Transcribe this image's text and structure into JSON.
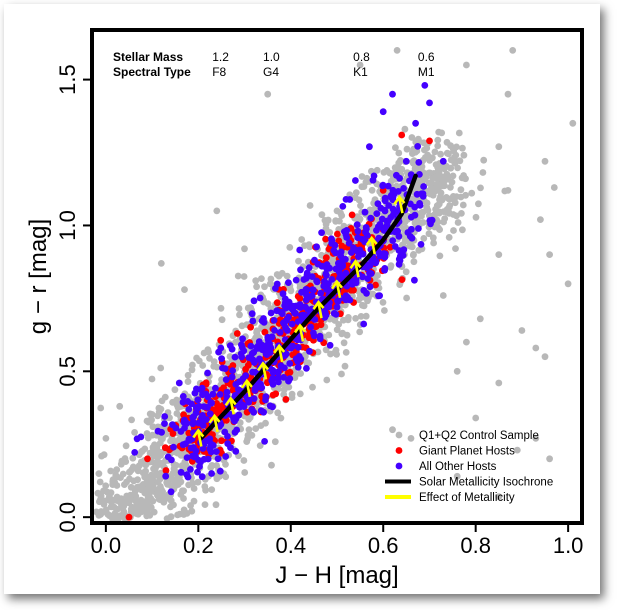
{
  "chart_data": {
    "type": "scatter",
    "xlabel": "J − H  [mag]",
    "ylabel": "g − r  [mag]",
    "xlim": [
      -0.03,
      1.03
    ],
    "ylim": [
      -0.02,
      1.67
    ],
    "x_ticks": [
      "0.0",
      "0.2",
      "0.4",
      "0.6",
      "0.8",
      "1.0"
    ],
    "x_tick_values": [
      0.0,
      0.2,
      0.4,
      0.6,
      0.8,
      1.0
    ],
    "y_ticks": [
      "0.0",
      "0.5",
      "1.0",
      "1.5"
    ],
    "y_tick_values": [
      0.0,
      0.5,
      1.0,
      1.5
    ],
    "grid": false,
    "legend_position": "bottom-right",
    "header": {
      "mass_label": "Stellar Mass",
      "type_label": "Spectral Type",
      "columns": [
        {
          "jh": 0.23,
          "mass": "1.2",
          "type": "F8"
        },
        {
          "jh": 0.34,
          "mass": "1.0",
          "type": "G4"
        },
        {
          "jh": 0.535,
          "mass": "0.8",
          "type": "K1"
        },
        {
          "jh": 0.675,
          "mass": "0.6",
          "type": "M1"
        }
      ]
    },
    "series": [
      {
        "name": "Q1+Q2 Control Sample",
        "kind": "points",
        "color": "#b8b8b8",
        "trend": {
          "slope": 1.75,
          "intercept": -0.06,
          "x_start": -0.02,
          "x_end": 0.73,
          "count": 2100,
          "spread_x": 0.05,
          "spread_y": 0.075
        },
        "outliers": [
          [
            0.72,
            1.32
          ],
          [
            0.85,
            1.27
          ],
          [
            0.95,
            1.22
          ],
          [
            0.87,
            1.12
          ],
          [
            0.5,
            1.05
          ],
          [
            0.85,
            0.9
          ],
          [
            0.96,
            0.9
          ],
          [
            1.0,
            0.8
          ],
          [
            0.81,
            0.68
          ],
          [
            0.9,
            0.64
          ],
          [
            0.78,
            0.6
          ],
          [
            0.93,
            0.58
          ],
          [
            0.76,
            0.5
          ],
          [
            0.85,
            0.46
          ],
          [
            0.95,
            0.55
          ],
          [
            0.8,
            0.34
          ],
          [
            0.12,
            0.87
          ],
          [
            0.35,
            1.45
          ],
          [
            0.24,
            1.05
          ],
          [
            0.71,
            1.0
          ],
          [
            0.85,
            0.07
          ],
          [
            0.76,
            0.14
          ],
          [
            0.89,
            0.23
          ],
          [
            0.93,
            0.27
          ],
          [
            0.96,
            0.2
          ],
          [
            0.0,
            0.27
          ],
          [
            0.03,
            0.38
          ],
          [
            0.63,
            1.6
          ],
          [
            0.78,
            1.55
          ],
          [
            0.87,
            1.45
          ],
          [
            0.94,
            1.02
          ],
          [
            0.66,
            0.27
          ],
          [
            0.73,
            0.76
          ],
          [
            0.97,
            1.13
          ],
          [
            1.01,
            1.35
          ],
          [
            0.88,
            1.6
          ],
          [
            0.55,
            1.55
          ],
          [
            0.3,
            0.92
          ],
          [
            0.17,
            0.78
          ],
          [
            0.62,
            0.3
          ]
        ]
      },
      {
        "name": "Giant Planet Hosts",
        "kind": "points",
        "color": "#ff0000",
        "trend": {
          "slope": 1.75,
          "intercept": -0.06,
          "x_start": 0.17,
          "x_end": 0.58,
          "count": 420,
          "spread_x": 0.03,
          "spread_y": 0.05
        },
        "outliers": [
          [
            0.05,
            0.0
          ],
          [
            0.09,
            0.2
          ],
          [
            0.13,
            0.16
          ],
          [
            0.53,
            0.99
          ],
          [
            0.64,
            1.31
          ],
          [
            0.7,
            1.29
          ],
          [
            0.6,
            1.12
          ]
        ]
      },
      {
        "name": "All Other Hosts",
        "kind": "points",
        "color": "#4400ff",
        "trend": {
          "slope": 1.75,
          "intercept": -0.06,
          "x_start": 0.15,
          "x_end": 0.67,
          "count": 600,
          "spread_x": 0.035,
          "spread_y": 0.07
        },
        "outliers": [
          [
            0.69,
            1.48
          ],
          [
            0.62,
            1.45
          ],
          [
            0.7,
            1.42
          ],
          [
            0.67,
            1.35
          ],
          [
            0.6,
            1.39
          ],
          [
            0.57,
            1.27
          ],
          [
            0.65,
            1.22
          ],
          [
            0.73,
            1.22
          ],
          [
            0.58,
            1.17
          ]
        ]
      },
      {
        "name": "Solar Metallicity Isochrone",
        "kind": "line",
        "color": "#000000",
        "points": [
          [
            0.205,
            0.27
          ],
          [
            0.3,
            0.43
          ],
          [
            0.45,
            0.7
          ],
          [
            0.55,
            0.86
          ],
          [
            0.6,
            0.95
          ],
          [
            0.64,
            1.04
          ],
          [
            0.67,
            1.17
          ]
        ]
      },
      {
        "name": "Effect of Metallicity",
        "kind": "arrows",
        "color": "#ffff00",
        "points": [
          [
            0.2,
            0.28
          ],
          [
            0.235,
            0.33
          ],
          [
            0.27,
            0.39
          ],
          [
            0.305,
            0.45
          ],
          [
            0.34,
            0.51
          ],
          [
            0.375,
            0.57
          ],
          [
            0.42,
            0.64
          ],
          [
            0.46,
            0.72
          ],
          [
            0.5,
            0.79
          ],
          [
            0.54,
            0.86
          ],
          [
            0.575,
            0.94
          ],
          [
            0.635,
            1.08
          ]
        ]
      }
    ]
  }
}
